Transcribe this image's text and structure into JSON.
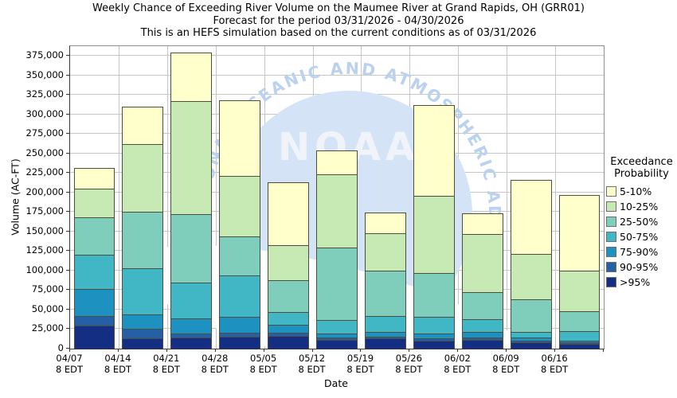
{
  "header": {
    "title_line1": "Weekly Chance of Exceeding River Volume on the Maumee River at Grand Rapids, OH (GRR01)",
    "title_line2": "Forecast for the period 03/31/2026 - 04/30/2026",
    "title_line3": "This is an HEFS simulation based on the current conditions as of 03/31/2026"
  },
  "y_axis": {
    "label": "Volume (AC-FT)"
  },
  "x_axis": {
    "label": "Date",
    "tick_sublabel": "8 EDT"
  },
  "legend": {
    "title_line1": "Exceedance",
    "title_line2": "Probability"
  },
  "watermark": {
    "arc_text": "NATIONAL OCEANIC AND ATMOSPHERIC ADMINISTRATION",
    "center_text": "NOAA",
    "circle_color": "#d4e4f6",
    "arc_text_color": "#bad2ef",
    "center_text_color": "#f0f4fa"
  },
  "chart_data": {
    "type": "bar",
    "subtype": "stacked-exceedance",
    "title": "Weekly Chance of Exceeding River Volume on the Maumee River at Grand Rapids, OH (GRR01)",
    "subtitle": "Forecast for the period 03/31/2026 - 04/30/2026",
    "note": "This is an HEFS simulation based on the current conditions as of 03/31/2026",
    "xlabel": "Date",
    "ylabel": "Volume (AC-FT)",
    "ylim": [
      0,
      387500
    ],
    "ytick_step": 25000,
    "ytick_max": 375000,
    "grid": true,
    "legend_position": "right",
    "categories": [
      "04/07",
      "04/14",
      "04/21",
      "04/28",
      "05/05",
      "05/12",
      "05/19",
      "05/26",
      "06/02",
      "06/09",
      "06/16"
    ],
    "bands_note": "tops = cumulative upper boundary (AC-FT) of each probability band, listed bottom band first",
    "bands": [
      {
        "label": ">95%",
        "color": "#132e83",
        "tops": [
          29500,
          13500,
          14500,
          15500,
          16500,
          11000,
          13100,
          10400,
          11000,
          8000,
          6000
        ]
      },
      {
        "label": "90-95%",
        "color": "#2660a4",
        "tops": [
          42000,
          25300,
          19600,
          20200,
          20600,
          13800,
          15800,
          13100,
          13800,
          10400,
          8000
        ]
      },
      {
        "label": "75-90%",
        "color": "#1d91c0",
        "tops": [
          77000,
          43400,
          38300,
          40600,
          30800,
          19200,
          21600,
          19200,
          21600,
          14800,
          10400
        ]
      },
      {
        "label": "50-75%",
        "color": "#41b6c4",
        "tops": [
          120000,
          103000,
          85000,
          94000,
          46700,
          36900,
          41600,
          40300,
          37600,
          21700,
          22300
        ]
      },
      {
        "label": "25-50%",
        "color": "#7fcdbb",
        "tops": [
          168000,
          175000,
          172000,
          144000,
          88000,
          130000,
          100000,
          97000,
          72000,
          63000,
          48000
        ]
      },
      {
        "label": "10-25%",
        "color": "#c7e9b4",
        "tops": [
          205000,
          262000,
          317000,
          221000,
          133000,
          223000,
          148000,
          196000,
          146500,
          121000,
          100000
        ]
      },
      {
        "label": "5-10%",
        "color": "#ffffcc",
        "tops": [
          232000,
          310000,
          379000,
          318000,
          213000,
          254000,
          174000,
          312000,
          173000,
          216000,
          197000
        ]
      }
    ]
  }
}
